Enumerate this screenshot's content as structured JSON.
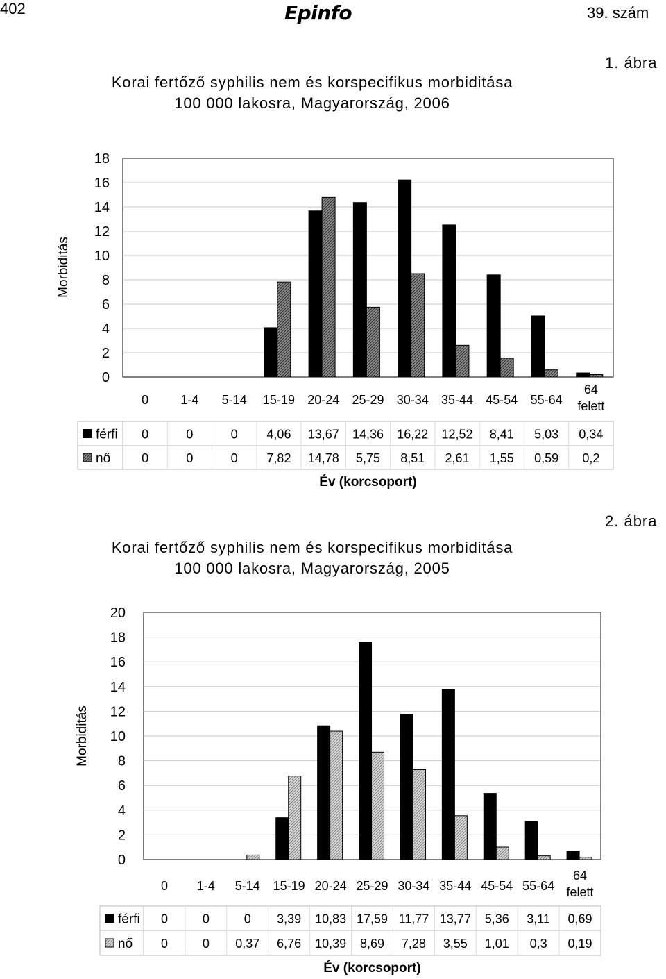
{
  "header": {
    "page_number": "402",
    "logo": "Epinfo",
    "issue": "39. szám"
  },
  "figures": [
    {
      "figure_label": "1. ábra",
      "title_line1": "Korai fertőző syphilis nem és korspecifikus morbiditása",
      "title_line2": "100 000 lakosra, Magyarország, 2006"
    },
    {
      "figure_label": "2. ábra",
      "title_line1": "Korai fertőző syphilis nem és korspecifikus morbiditása",
      "title_line2": "100 000 lakosra, Magyarország, 2005"
    }
  ],
  "chart_data": [
    {
      "type": "bar",
      "title": "Korai fertőző syphilis nem és korspecifikus morbiditása 100 000 lakosra, Magyarország, 2006",
      "xlabel": "Év (korcsoport)",
      "ylabel": "Morbiditás",
      "ylim": [
        0,
        18
      ],
      "yticks": [
        0,
        2,
        4,
        6,
        8,
        10,
        12,
        14,
        16,
        18
      ],
      "categories": [
        "0",
        "1-4",
        "5-14",
        "15-19",
        "20-24",
        "25-29",
        "30-34",
        "35-44",
        "45-54",
        "55-64",
        "64 felett"
      ],
      "series": [
        {
          "name": "férfi",
          "color": "#000000",
          "values": [
            0,
            0,
            0,
            4.06,
            13.67,
            14.36,
            16.22,
            12.52,
            8.41,
            5.03,
            0.34
          ],
          "labels": [
            "0",
            "0",
            "0",
            "4,06",
            "13,67",
            "14,36",
            "16,22",
            "12,52",
            "8,41",
            "5,03",
            "0,34"
          ]
        },
        {
          "name": "nő",
          "color": "#ffffff",
          "values": [
            0,
            0,
            0,
            7.82,
            14.78,
            5.75,
            8.51,
            2.61,
            1.55,
            0.59,
            0.2
          ],
          "labels": [
            "0",
            "0",
            "0",
            "7,82",
            "14,78",
            "5,75",
            "8,51",
            "2,61",
            "1,55",
            "0,59",
            "0,2"
          ]
        }
      ],
      "gridlines": true,
      "legend": "data-table"
    },
    {
      "type": "bar",
      "title": "Korai fertőző syphilis nem és korspecifikus morbiditása 100 000 lakosra, Magyarország, 2005",
      "xlabel": "Év (korcsoport)",
      "ylabel": "Morbiditás",
      "ylim": [
        0,
        20
      ],
      "yticks": [
        0,
        2,
        4,
        6,
        8,
        10,
        12,
        14,
        16,
        18,
        20
      ],
      "categories": [
        "0",
        "1-4",
        "5-14",
        "15-19",
        "20-24",
        "25-29",
        "30-34",
        "35-44",
        "45-54",
        "55-64",
        "64 felett"
      ],
      "series": [
        {
          "name": "férfi",
          "color": "#000000",
          "values": [
            0,
            0,
            0,
            3.39,
            10.83,
            17.59,
            11.77,
            13.77,
            5.36,
            3.11,
            0.69
          ],
          "labels": [
            "0",
            "0",
            "0",
            "3,39",
            "10,83",
            "17,59",
            "11,77",
            "13,77",
            "5,36",
            "3,11",
            "0,69"
          ]
        },
        {
          "name": "nő",
          "color": "#ffffff",
          "values": [
            0,
            0,
            0.37,
            6.76,
            10.39,
            8.69,
            7.28,
            3.55,
            1.01,
            0.3,
            0.19
          ],
          "labels": [
            "0",
            "0",
            "0,37",
            "6,76",
            "10,39",
            "8,69",
            "7,28",
            "3,55",
            "1,01",
            "0,3",
            "0,19"
          ]
        }
      ],
      "gridlines": true,
      "legend": "data-table"
    }
  ]
}
